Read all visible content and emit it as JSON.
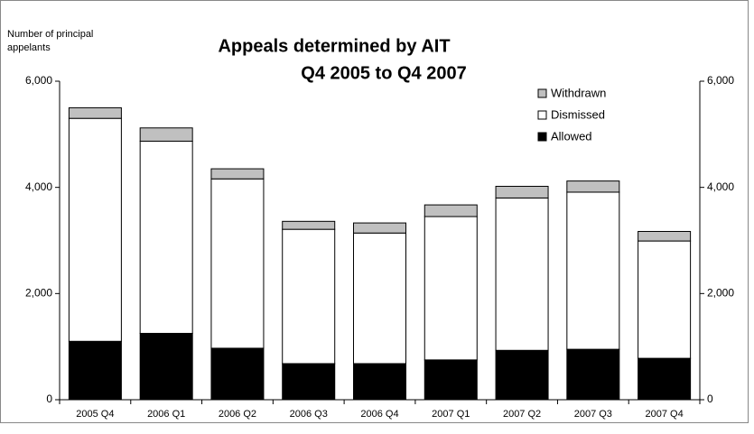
{
  "chart_data": {
    "type": "stacked_bar",
    "title": "Appeals determined by AIT",
    "subtitle": "Q4 2005 to Q4 2007",
    "y_label": [
      "Number of principal",
      "appelants"
    ],
    "categories": [
      "2005 Q4",
      "2006 Q1",
      "2006 Q2",
      "2006 Q3",
      "2006 Q4",
      "2007 Q1",
      "2007 Q2",
      "2007 Q3",
      "2007 Q4"
    ],
    "series": [
      {
        "name": "Allowed",
        "color": "#000000",
        "values": [
          1100,
          1250,
          970,
          680,
          680,
          750,
          930,
          950,
          780
        ]
      },
      {
        "name": "Dismissed",
        "color": "#ffffff",
        "values": [
          4200,
          3620,
          3190,
          2530,
          2460,
          2700,
          2870,
          2960,
          2210
        ]
      },
      {
        "name": "Withdrawn",
        "color": "#c0c0c0",
        "values": [
          200,
          250,
          190,
          150,
          190,
          220,
          220,
          210,
          180
        ]
      }
    ],
    "ylim": [
      0,
      6000
    ],
    "yticks": [
      0,
      {
        "value": 2000,
        "label": "2,000"
      },
      {
        "value": 4000,
        "label": "4,000"
      },
      {
        "value": 6000,
        "label": "6,000"
      }
    ],
    "y2lim": [
      0,
      6000
    ],
    "y2ticks": [
      0,
      {
        "value": 2000,
        "label": "2,000"
      },
      {
        "value": 4000,
        "label": "4,000"
      },
      {
        "value": 6000,
        "label": "6,000"
      }
    ],
    "legend": "top-right",
    "grid": false
  }
}
